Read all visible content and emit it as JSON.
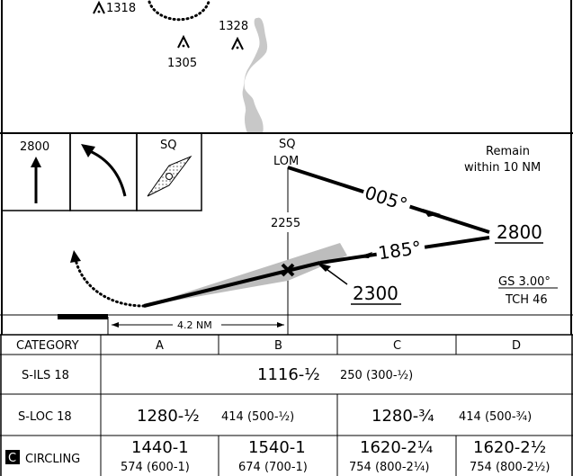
{
  "plan_view": {
    "obstacles": [
      {
        "elevation": "1318"
      },
      {
        "elevation": "1305"
      },
      {
        "elevation": "1328"
      }
    ]
  },
  "profile": {
    "boxes": {
      "altitude_box": "2800",
      "beacon_box": "SQ"
    },
    "fix_label": "SQ",
    "fix_type": "LOM",
    "fix_altitude": "2255",
    "remain_note_line1": "Remain",
    "remain_note_line2": "within 10 NM",
    "outbound_course": "005°",
    "inbound_course": "185°",
    "procedure_turn_altitude": "2800",
    "intercept_altitude": "2300",
    "glideslope": "GS 3.00°",
    "tch": "TCH 46",
    "distance": "4.2 NM"
  },
  "minimums": {
    "header_label": "CATEGORY",
    "categories": [
      "A",
      "B",
      "C",
      "D"
    ],
    "rows": [
      {
        "label": "S-ILS 18",
        "value": "1116-½",
        "haa": "250 (300-½)"
      },
      {
        "label": "S-LOC 18",
        "ab_value": "1280-½",
        "ab_haa": "414 (500-½)",
        "cd_value": "1280-¾",
        "cd_haa": "414 (500-¾)"
      },
      {
        "label_badge": "C",
        "label": "CIRCLING",
        "cells": [
          {
            "value": "1440-1",
            "haa": "574 (600-1)"
          },
          {
            "value": "1540-1",
            "haa": "674 (700-1)"
          },
          {
            "value": "1620-2¼",
            "haa": "754 (800-2¼)"
          },
          {
            "value": "1620-2½",
            "haa": "754 (800-2½)"
          }
        ]
      }
    ]
  }
}
